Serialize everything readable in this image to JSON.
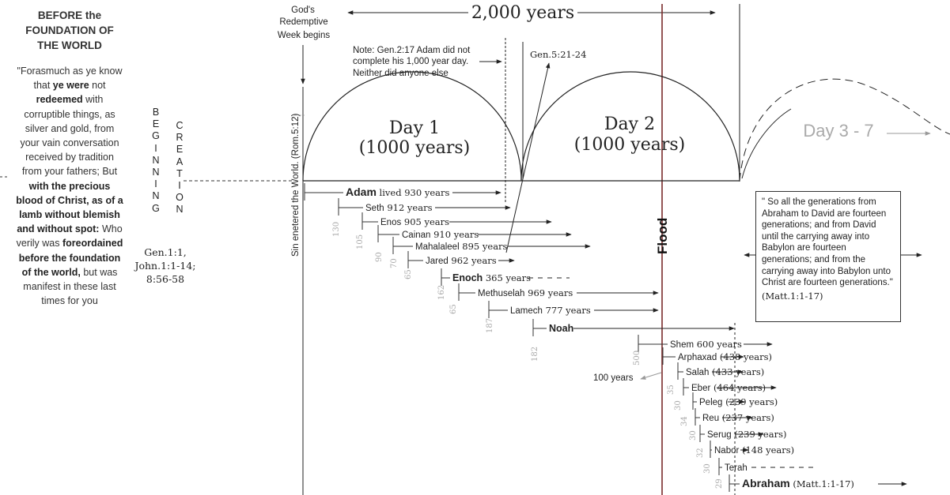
{
  "left_panel": {
    "title": "BEFORE the FOUNDATION OF THE WORLD",
    "quote": [
      {
        "t": "\"Forasmuch as ye know that ",
        "b": false
      },
      {
        "t": "ye were",
        "b": true
      },
      {
        "t": " not ",
        "b": false
      },
      {
        "t": "redeemed",
        "b": true
      },
      {
        "t": " with corruptible things, as silver and gold, from your vain conversation received by tradition from your fathers; But ",
        "b": false
      },
      {
        "t": "with the precious blood of Christ, as of a lamb without blemish and without spot:",
        "b": true
      },
      {
        "t": " Who verily was ",
        "b": false
      },
      {
        "t": "foreordained",
        "b": true
      },
      {
        "t": " ",
        "b": false
      },
      {
        "t": "before the foundation of the world,",
        "b": true
      },
      {
        "t": " but was manifest in these last times for you",
        "b": false
      }
    ]
  },
  "vertical_words": {
    "beginning": [
      "B",
      "E",
      "G",
      "I",
      "N",
      "N",
      "I",
      "N",
      "G"
    ],
    "creation": [
      "C",
      "R",
      "E",
      "A",
      "T",
      "I",
      "O",
      "N"
    ]
  },
  "gen_ref": [
    "Gen.1:1,",
    "John.1:1-14;",
    "8:56-58"
  ],
  "header": {
    "redemptive_week": [
      "God's",
      "Redemptive",
      "Week begins"
    ],
    "span_label": "2,000 years",
    "gen_ref_top": "Gen.5:21-24",
    "note_lines": [
      "Note: Gen.2:17 Adam did not",
      "complete his 1,000 year day.",
      "Neither did anyone else"
    ]
  },
  "days": {
    "day1": [
      "Day 1",
      "(1000 years)"
    ],
    "day2": [
      "Day 2",
      "(1000 years)"
    ],
    "day3": "Day 3 - 7"
  },
  "axis_labels": {
    "sin_entered": "Sin enetered the World. (Rom.5:12)",
    "flood": "Flood",
    "hundred_years": "100 years"
  },
  "patriarchs": [
    {
      "name": "Adam",
      "lived": "lived 930 years",
      "bold": true
    },
    {
      "name": "Seth",
      "lived": "912  years"
    },
    {
      "name": "Enos",
      "lived": "905 years"
    },
    {
      "name": "Cainan",
      "lived": "910 years"
    },
    {
      "name": "Mahalaleel",
      "lived": "895 years"
    },
    {
      "name": "Jared",
      "lived": "962 years"
    },
    {
      "name": "Enoch",
      "lived": "365 years",
      "bold": true
    },
    {
      "name": "Methuselah",
      "lived": "969 years"
    },
    {
      "name": "Lamech",
      "lived": "777 years"
    },
    {
      "name": "Noah",
      "lived": "",
      "bold": true
    },
    {
      "name": "Shem",
      "lived": "600 years"
    },
    {
      "name": "Arphaxad",
      "lived": "(438 years)"
    },
    {
      "name": "Salah",
      "lived": "(433 years)"
    },
    {
      "name": "Eber",
      "lived": "(464 years)"
    },
    {
      "name": "Peleg",
      "lived": "(239 years)"
    },
    {
      "name": "Reu",
      "lived": "(237 years)"
    },
    {
      "name": "Serug",
      "lived": "(239 years)"
    },
    {
      "name": "Nabor",
      "lived": "(148 years)"
    },
    {
      "name": "Terah",
      "lived": ""
    },
    {
      "name": "Abraham",
      "lived": "(Matt.1:1-17)",
      "bold": true
    }
  ],
  "begat_ages": [
    "130",
    "105",
    "90",
    "70",
    "65",
    "162",
    "65",
    "187",
    "182",
    "500",
    "35",
    "30",
    "34",
    "30",
    "32",
    "30",
    "29"
  ],
  "note_box": {
    "text": "\" So all the generations from Abraham to David are fourteen generations; and from David until the carrying away into Babylon are fourteen generations; and from the carrying away into Babylon unto Christ are fourteen generations.\"",
    "ref": "(Matt.1:1-17)"
  },
  "colors": {
    "flood_line": "#7a2b2b",
    "text": "#222222",
    "faint": "#aaaaaa"
  }
}
